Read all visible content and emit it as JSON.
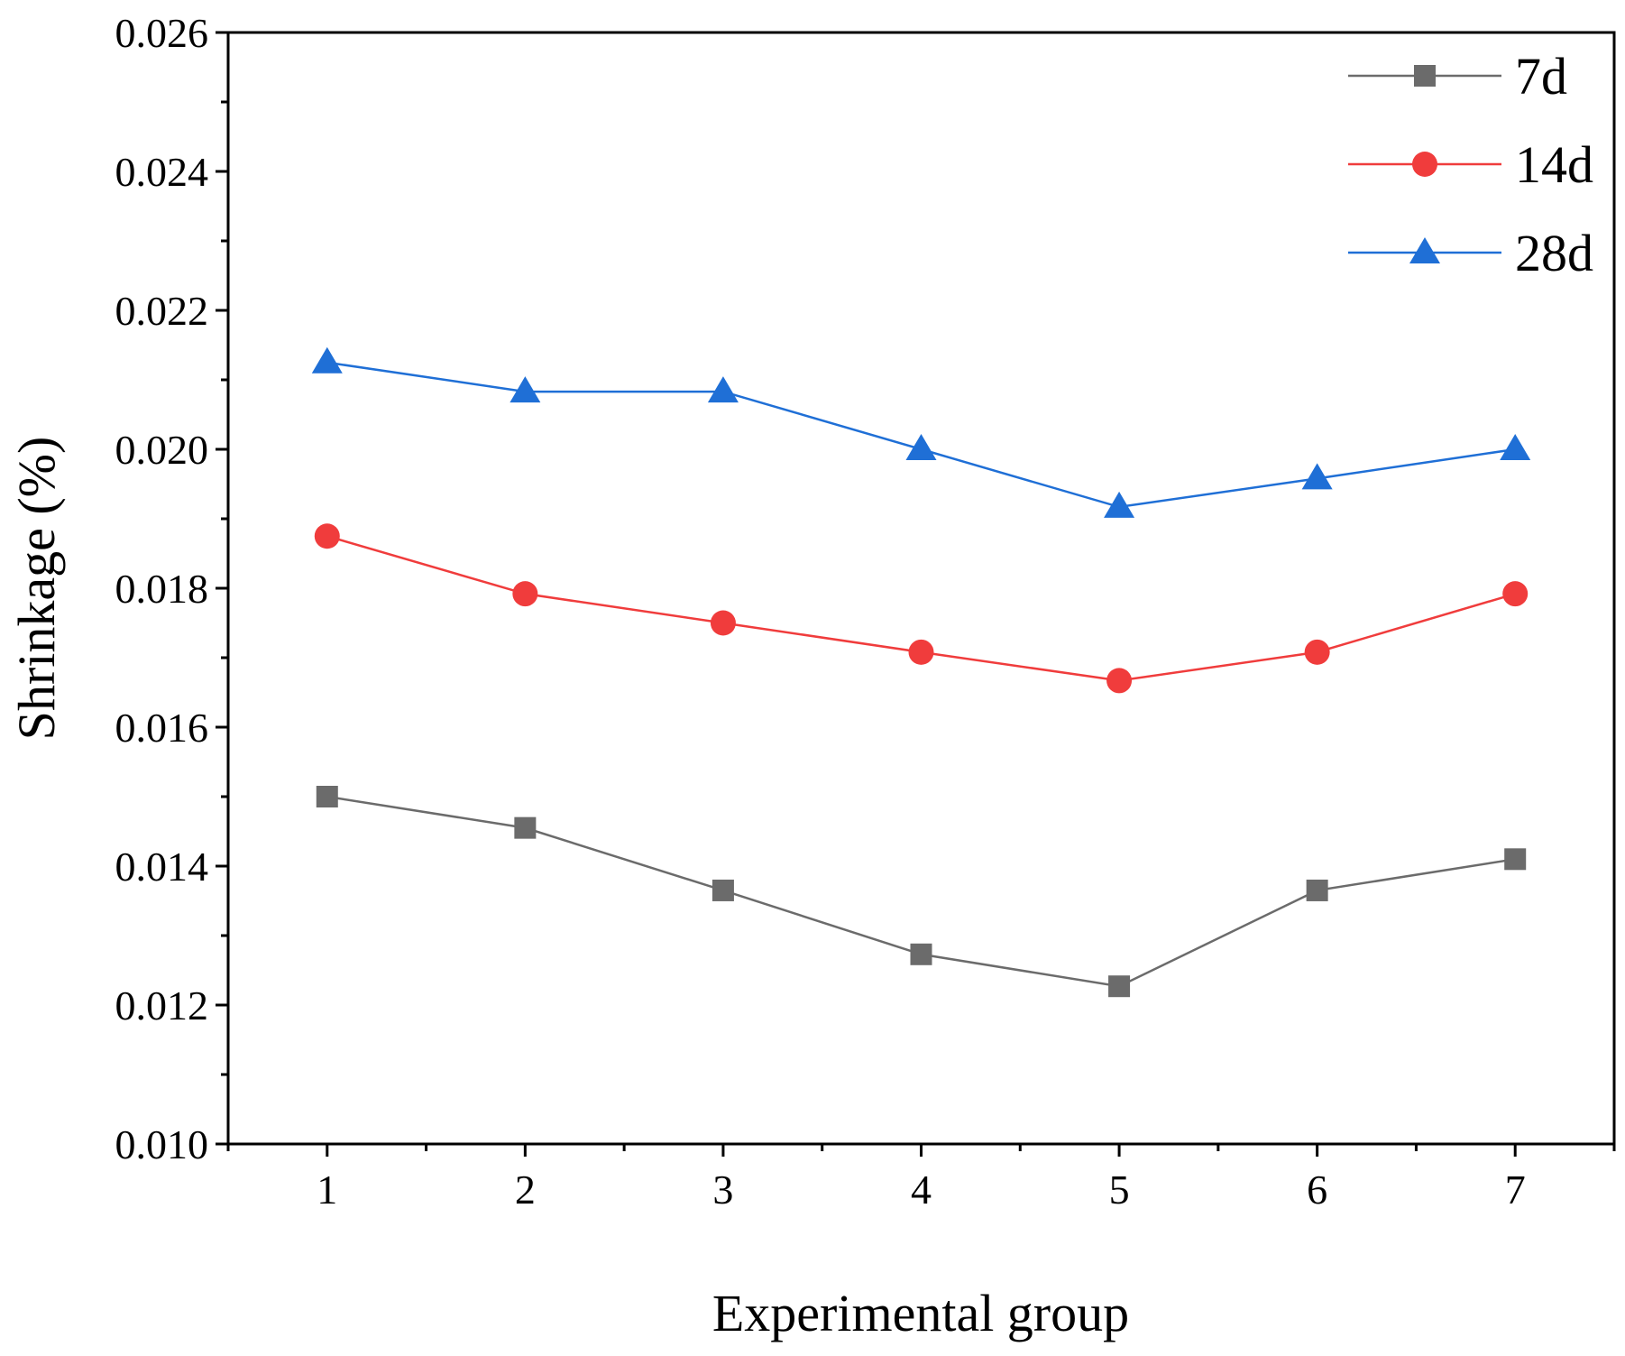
{
  "chart_data": {
    "type": "line",
    "title": "",
    "xlabel": "Experimental group",
    "ylabel": "Shrinkage (%)",
    "x": [
      1,
      2,
      3,
      4,
      5,
      6,
      7
    ],
    "x_tick_labels": [
      "1",
      "2",
      "3",
      "4",
      "5",
      "6",
      "7"
    ],
    "xlim": [
      0.5,
      7.5
    ],
    "ylim": [
      0.01,
      0.026
    ],
    "y_ticks": [
      0.01,
      0.012,
      0.014,
      0.016,
      0.018,
      0.02,
      0.022,
      0.024,
      0.026
    ],
    "y_tick_labels": [
      "0.010",
      "0.012",
      "0.014",
      "0.016",
      "0.018",
      "0.020",
      "0.022",
      "0.024",
      "0.026"
    ],
    "grid": false,
    "legend_position": "top-right",
    "series": [
      {
        "name": "7d",
        "marker": "square",
        "color": "#6b6b6b",
        "values": [
          0.015,
          0.01455,
          0.01365,
          0.01273,
          0.01227,
          0.01365,
          0.0141
        ]
      },
      {
        "name": "14d",
        "marker": "circle",
        "color": "#f03c3c",
        "values": [
          0.01875,
          0.01792,
          0.0175,
          0.01708,
          0.01667,
          0.01708,
          0.01792
        ]
      },
      {
        "name": "28d",
        "marker": "triangle",
        "color": "#1f6fd6",
        "values": [
          0.02125,
          0.02083,
          0.02083,
          0.02,
          0.01917,
          0.01958,
          0.02
        ]
      }
    ]
  }
}
